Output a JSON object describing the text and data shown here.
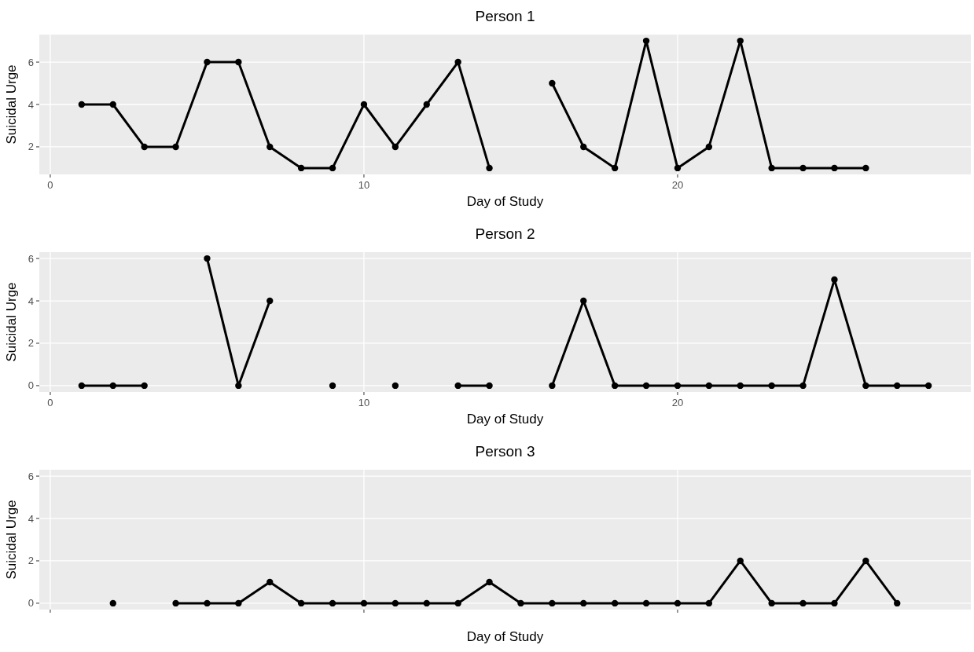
{
  "chart_data": [
    {
      "type": "line",
      "title": "Person 1",
      "xlabel": "Day of Study",
      "ylabel": "Suicidal Urge",
      "x": [
        1,
        2,
        3,
        4,
        5,
        6,
        7,
        8,
        9,
        10,
        11,
        12,
        13,
        14,
        15,
        16,
        17,
        18,
        19,
        20,
        21,
        22,
        23,
        24,
        25,
        26
      ],
      "series": [
        {
          "color": "#000000",
          "values": [
            4,
            4,
            2,
            2,
            6,
            6,
            2,
            1,
            1,
            4,
            2,
            4,
            6,
            1,
            null,
            5,
            2,
            1,
            7,
            1,
            2,
            7,
            1,
            1,
            1,
            1
          ]
        }
      ],
      "xlim": [
        -0.35,
        29.35
      ],
      "xticks": [
        0,
        10,
        20
      ],
      "ylim": [
        0.7,
        7.3
      ],
      "yticks": [
        2,
        4,
        6
      ],
      "grid": true,
      "marker": "circle",
      "line_style": "solid"
    },
    {
      "type": "line",
      "title": "Person 2",
      "xlabel": "Day of Study",
      "ylabel": "Suicidal Urge",
      "x": [
        1,
        2,
        3,
        4,
        5,
        6,
        7,
        8,
        9,
        10,
        11,
        12,
        13,
        14,
        15,
        16,
        17,
        18,
        19,
        20,
        21,
        22,
        23,
        24,
        25,
        26,
        27,
        28
      ],
      "series": [
        {
          "color": "#000000",
          "values": [
            0,
            0,
            0,
            null,
            6,
            0,
            4,
            null,
            0,
            null,
            0,
            null,
            0,
            0,
            null,
            0,
            4,
            0,
            0,
            0,
            0,
            0,
            0,
            0,
            5,
            0,
            0,
            0
          ]
        }
      ],
      "xlim": [
        -0.35,
        29.35
      ],
      "xticks": [
        0,
        10,
        20
      ],
      "ylim": [
        -0.3,
        6.3
      ],
      "yticks": [
        0,
        2,
        4,
        6
      ],
      "grid": true,
      "marker": "circle",
      "line_style": "solid"
    },
    {
      "type": "line",
      "title": "Person 3",
      "xlabel": "Day of Study",
      "ylabel": "Suicidal Urge",
      "x": [
        2,
        3,
        4,
        5,
        6,
        7,
        8,
        9,
        10,
        11,
        12,
        13,
        14,
        15,
        16,
        17,
        18,
        19,
        20,
        21,
        22,
        23,
        24,
        25,
        26,
        27
      ],
      "series": [
        {
          "color": "#000000",
          "values": [
            0,
            null,
            0,
            0,
            0,
            1,
            0,
            0,
            0,
            0,
            0,
            0,
            1,
            0,
            0,
            0,
            0,
            0,
            0,
            0,
            2,
            0,
            0,
            0,
            2,
            0
          ]
        }
      ],
      "xlim": [
        -0.35,
        29.35
      ],
      "xticks": [
        {
          "value": 0,
          "label": null
        },
        {
          "value": 10,
          "label": null
        },
        {
          "value": 20,
          "label": null
        }
      ],
      "ylim": [
        -0.3,
        6.3
      ],
      "yticks": [
        0,
        2,
        4,
        6
      ],
      "grid": true,
      "marker": "circle",
      "line_style": "solid",
      "tick_labels": "y"
    }
  ]
}
